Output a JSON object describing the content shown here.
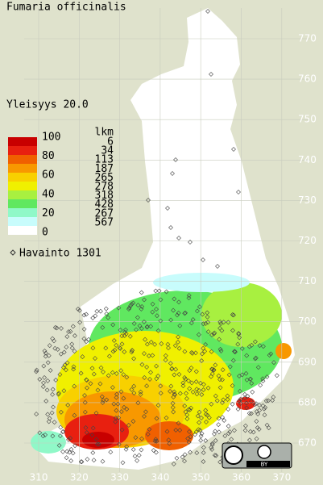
{
  "title": "Fumaria officinalis",
  "frequency": "Yleisyys  20.0",
  "legend": {
    "scale_labels": [
      "100",
      "80",
      "60",
      "40",
      "20",
      "0"
    ],
    "count_header": "lkm",
    "counts": [
      6,
      34,
      113,
      187,
      265,
      278,
      318,
      428,
      267,
      567
    ],
    "colors": [
      "#c80000",
      "#e82010",
      "#f06000",
      "#f89800",
      "#f8d000",
      "#f0f000",
      "#a8f040",
      "#60e860",
      "#90f8c8",
      "#c8fcfc",
      "#ffffff"
    ]
  },
  "observations": "Havainto 1301",
  "grid": {
    "northing": [
      "770",
      "760",
      "750",
      "740",
      "730",
      "720",
      "710",
      "700",
      "690",
      "680",
      "670"
    ],
    "easting": [
      "310",
      "320",
      "330",
      "340",
      "350",
      "360",
      "370"
    ]
  },
  "license": "BY"
}
